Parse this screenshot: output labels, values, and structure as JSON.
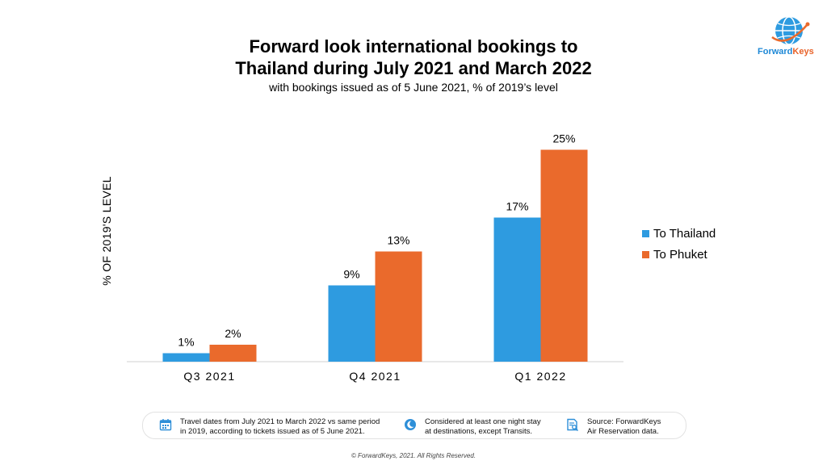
{
  "title_line1": "Forward look international bookings to",
  "title_line2": "Thailand during July 2021 and March 2022",
  "subtitle": "with bookings issued as of 5 June 2021, % of 2019’s level",
  "logo": {
    "text_forward": "Forward",
    "text_keys": "Keys",
    "icon": "globe-icon"
  },
  "chart_data": {
    "type": "bar",
    "title": "Forward look international bookings to Thailand during July 2021 and March 2022",
    "subtitle": "with bookings issued as of 5 June 2021, % of 2019’s level",
    "ylabel": "% OF 2019'S LEVEL",
    "xlabel": "",
    "categories": [
      "Q3 2021",
      "Q4 2021",
      "Q1 2022"
    ],
    "series": [
      {
        "name": "To Thailand",
        "values": [
          1,
          9,
          17
        ],
        "labels": [
          "1%",
          "9%",
          "17%"
        ],
        "color": "#2e9be0"
      },
      {
        "name": "To Phuket",
        "values": [
          2,
          13,
          25
        ],
        "labels": [
          "2%",
          "13%",
          "25%"
        ],
        "color": "#ea6a2c"
      }
    ],
    "ylim": [
      0,
      30
    ],
    "grid": false,
    "legend_position": "right"
  },
  "footer_notes": [
    {
      "icon": "calendar-icon",
      "line1": "Travel dates from July 2021 to March 2022 vs same period",
      "line2": "in 2019, according to tickets issued as of 5 June 2021."
    },
    {
      "icon": "moon-icon",
      "line1": "Considered at least one night stay",
      "line2": "at destinations, except Transits."
    },
    {
      "icon": "data-source-icon",
      "line1": "Source: ForwardKeys",
      "line2": "Air Reservation data."
    }
  ],
  "copyright": "© ForwardKeys, 2021. All Rights Reserved.",
  "colors": {
    "thailand": "#2e9be0",
    "phuket": "#ea6a2c",
    "icon_blue": "#2e8fd8"
  }
}
